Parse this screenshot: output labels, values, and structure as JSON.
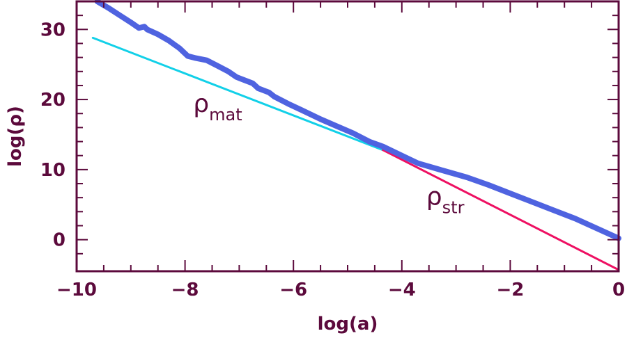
{
  "chart_data": {
    "type": "line",
    "xlabel": "log(a)",
    "ylabel": "log(ρ)",
    "xlim": [
      -10,
      0
    ],
    "ylim": [
      -4.5,
      34
    ],
    "xticks": [
      -10,
      -8,
      -6,
      -4,
      -2,
      0
    ],
    "xtick_labels": [
      "−10",
      "−8",
      "−6",
      "−4",
      "−2",
      "0"
    ],
    "yticks": [
      0,
      10,
      20,
      30
    ],
    "ytick_labels": [
      "0",
      "10",
      "20",
      "30"
    ],
    "grid": false,
    "colors": {
      "axis": "#5c0a3c",
      "total": "#4f63e0",
      "matter": "#12d0e8",
      "string": "#ee1062"
    },
    "series": [
      {
        "key": "total",
        "x": [
          -9.62,
          -9.4,
          -9.2,
          -9.0,
          -8.85,
          -8.75,
          -8.7,
          -8.5,
          -8.3,
          -8.1,
          -7.95,
          -7.8,
          -7.6,
          -7.4,
          -7.2,
          -7.05,
          -6.95,
          -6.75,
          -6.65,
          -6.45,
          -6.35,
          -6.1,
          -5.85,
          -5.5,
          -5.2,
          -4.9,
          -4.6,
          -4.35,
          -4.0,
          -3.7,
          -3.3,
          -2.8,
          -2.4,
          -2.0,
          -1.6,
          -1.2,
          -0.8,
          -0.4,
          0.0
        ],
        "y": [
          34.0,
          33.0,
          32.0,
          31.0,
          30.2,
          30.4,
          30.0,
          29.3,
          28.4,
          27.3,
          26.2,
          25.9,
          25.6,
          24.8,
          24.0,
          23.2,
          22.9,
          22.3,
          21.6,
          21.0,
          20.4,
          19.4,
          18.5,
          17.2,
          16.2,
          15.2,
          14.0,
          13.3,
          12.0,
          10.9,
          10.0,
          8.9,
          7.8,
          6.6,
          5.4,
          4.2,
          3.0,
          1.6,
          0.2
        ]
      },
      {
        "key": "matter",
        "label": "ρ",
        "label_sub": "mat",
        "x": [
          -9.7,
          -4.35
        ],
        "y": [
          28.8,
          12.8
        ]
      },
      {
        "key": "string",
        "label": "ρ",
        "label_sub": "str",
        "x": [
          -4.35,
          0.0
        ],
        "y": [
          12.8,
          -4.3
        ]
      }
    ]
  }
}
